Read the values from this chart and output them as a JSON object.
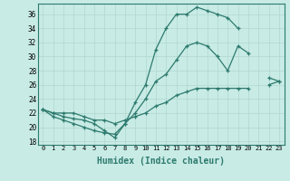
{
  "xlabel": "Humidex (Indice chaleur)",
  "bg_color": "#c8ebe5",
  "line_color": "#2d7a6e",
  "grid_color": "#b0d8d0",
  "xlim": [
    -0.5,
    23.5
  ],
  "ylim": [
    17.5,
    37.5
  ],
  "yticks": [
    18,
    20,
    22,
    24,
    26,
    28,
    30,
    32,
    34,
    36
  ],
  "xticks": [
    0,
    1,
    2,
    3,
    4,
    5,
    6,
    7,
    8,
    9,
    10,
    11,
    12,
    13,
    14,
    15,
    16,
    17,
    18,
    19,
    20,
    21,
    22,
    23
  ],
  "line1_y": [
    22.5,
    22.0,
    21.5,
    21.2,
    21.0,
    20.5,
    19.5,
    18.5,
    20.5,
    23.5,
    26.0,
    31.0,
    34.0,
    36.0,
    36.0,
    37.0,
    36.5,
    36.0,
    35.5,
    34.0,
    null,
    null,
    null,
    null
  ],
  "line2_y": [
    22.5,
    21.5,
    21.0,
    20.5,
    20.0,
    19.5,
    19.2,
    19.0,
    20.5,
    22.0,
    24.0,
    26.5,
    27.5,
    29.5,
    31.5,
    32.0,
    31.5,
    30.0,
    28.0,
    31.5,
    30.5,
    null,
    27.0,
    26.5
  ],
  "line3_y": [
    22.5,
    22.0,
    22.0,
    22.0,
    21.5,
    21.0,
    21.0,
    20.5,
    21.0,
    21.5,
    22.0,
    23.0,
    23.5,
    24.5,
    25.0,
    25.5,
    25.5,
    25.5,
    25.5,
    25.5,
    25.5,
    null,
    26.0,
    26.5
  ]
}
